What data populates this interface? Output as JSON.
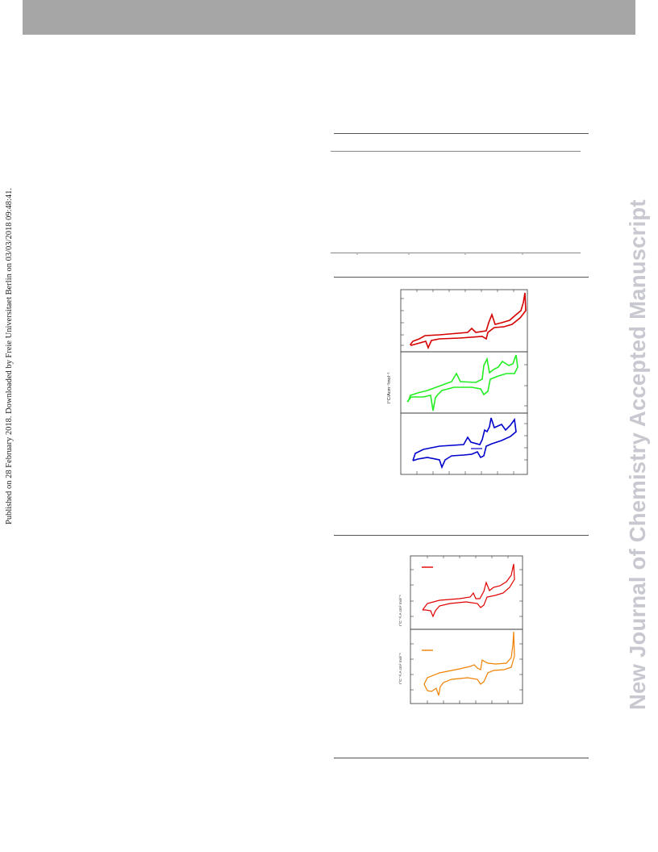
{
  "page": {
    "side_note": "Published on 28 February 2018. Downloaded by Freie Universitaet Berlin on 03/03/2018 09:48:41.",
    "watermark": "New Journal of Chemistry Accepted Manuscript"
  },
  "colors": {
    "header_bar": "#a6a6a6",
    "watermark": "#c8c8d0",
    "series_1": "#d40000",
    "series_2": "#22ee22",
    "series_3": "#0000cc",
    "series_4": "#e00000",
    "series_5": "#f08000"
  },
  "figure_a": {
    "ylabel": "I°C/Acm⁻²mol⁻¹"
  },
  "figure_b": {
    "ylabel_top": "I°C⁻¹/ A cm² mol⁻¹",
    "ylabel_bottom": "I°C⁻¹/ A cm² mol⁻¹"
  }
}
